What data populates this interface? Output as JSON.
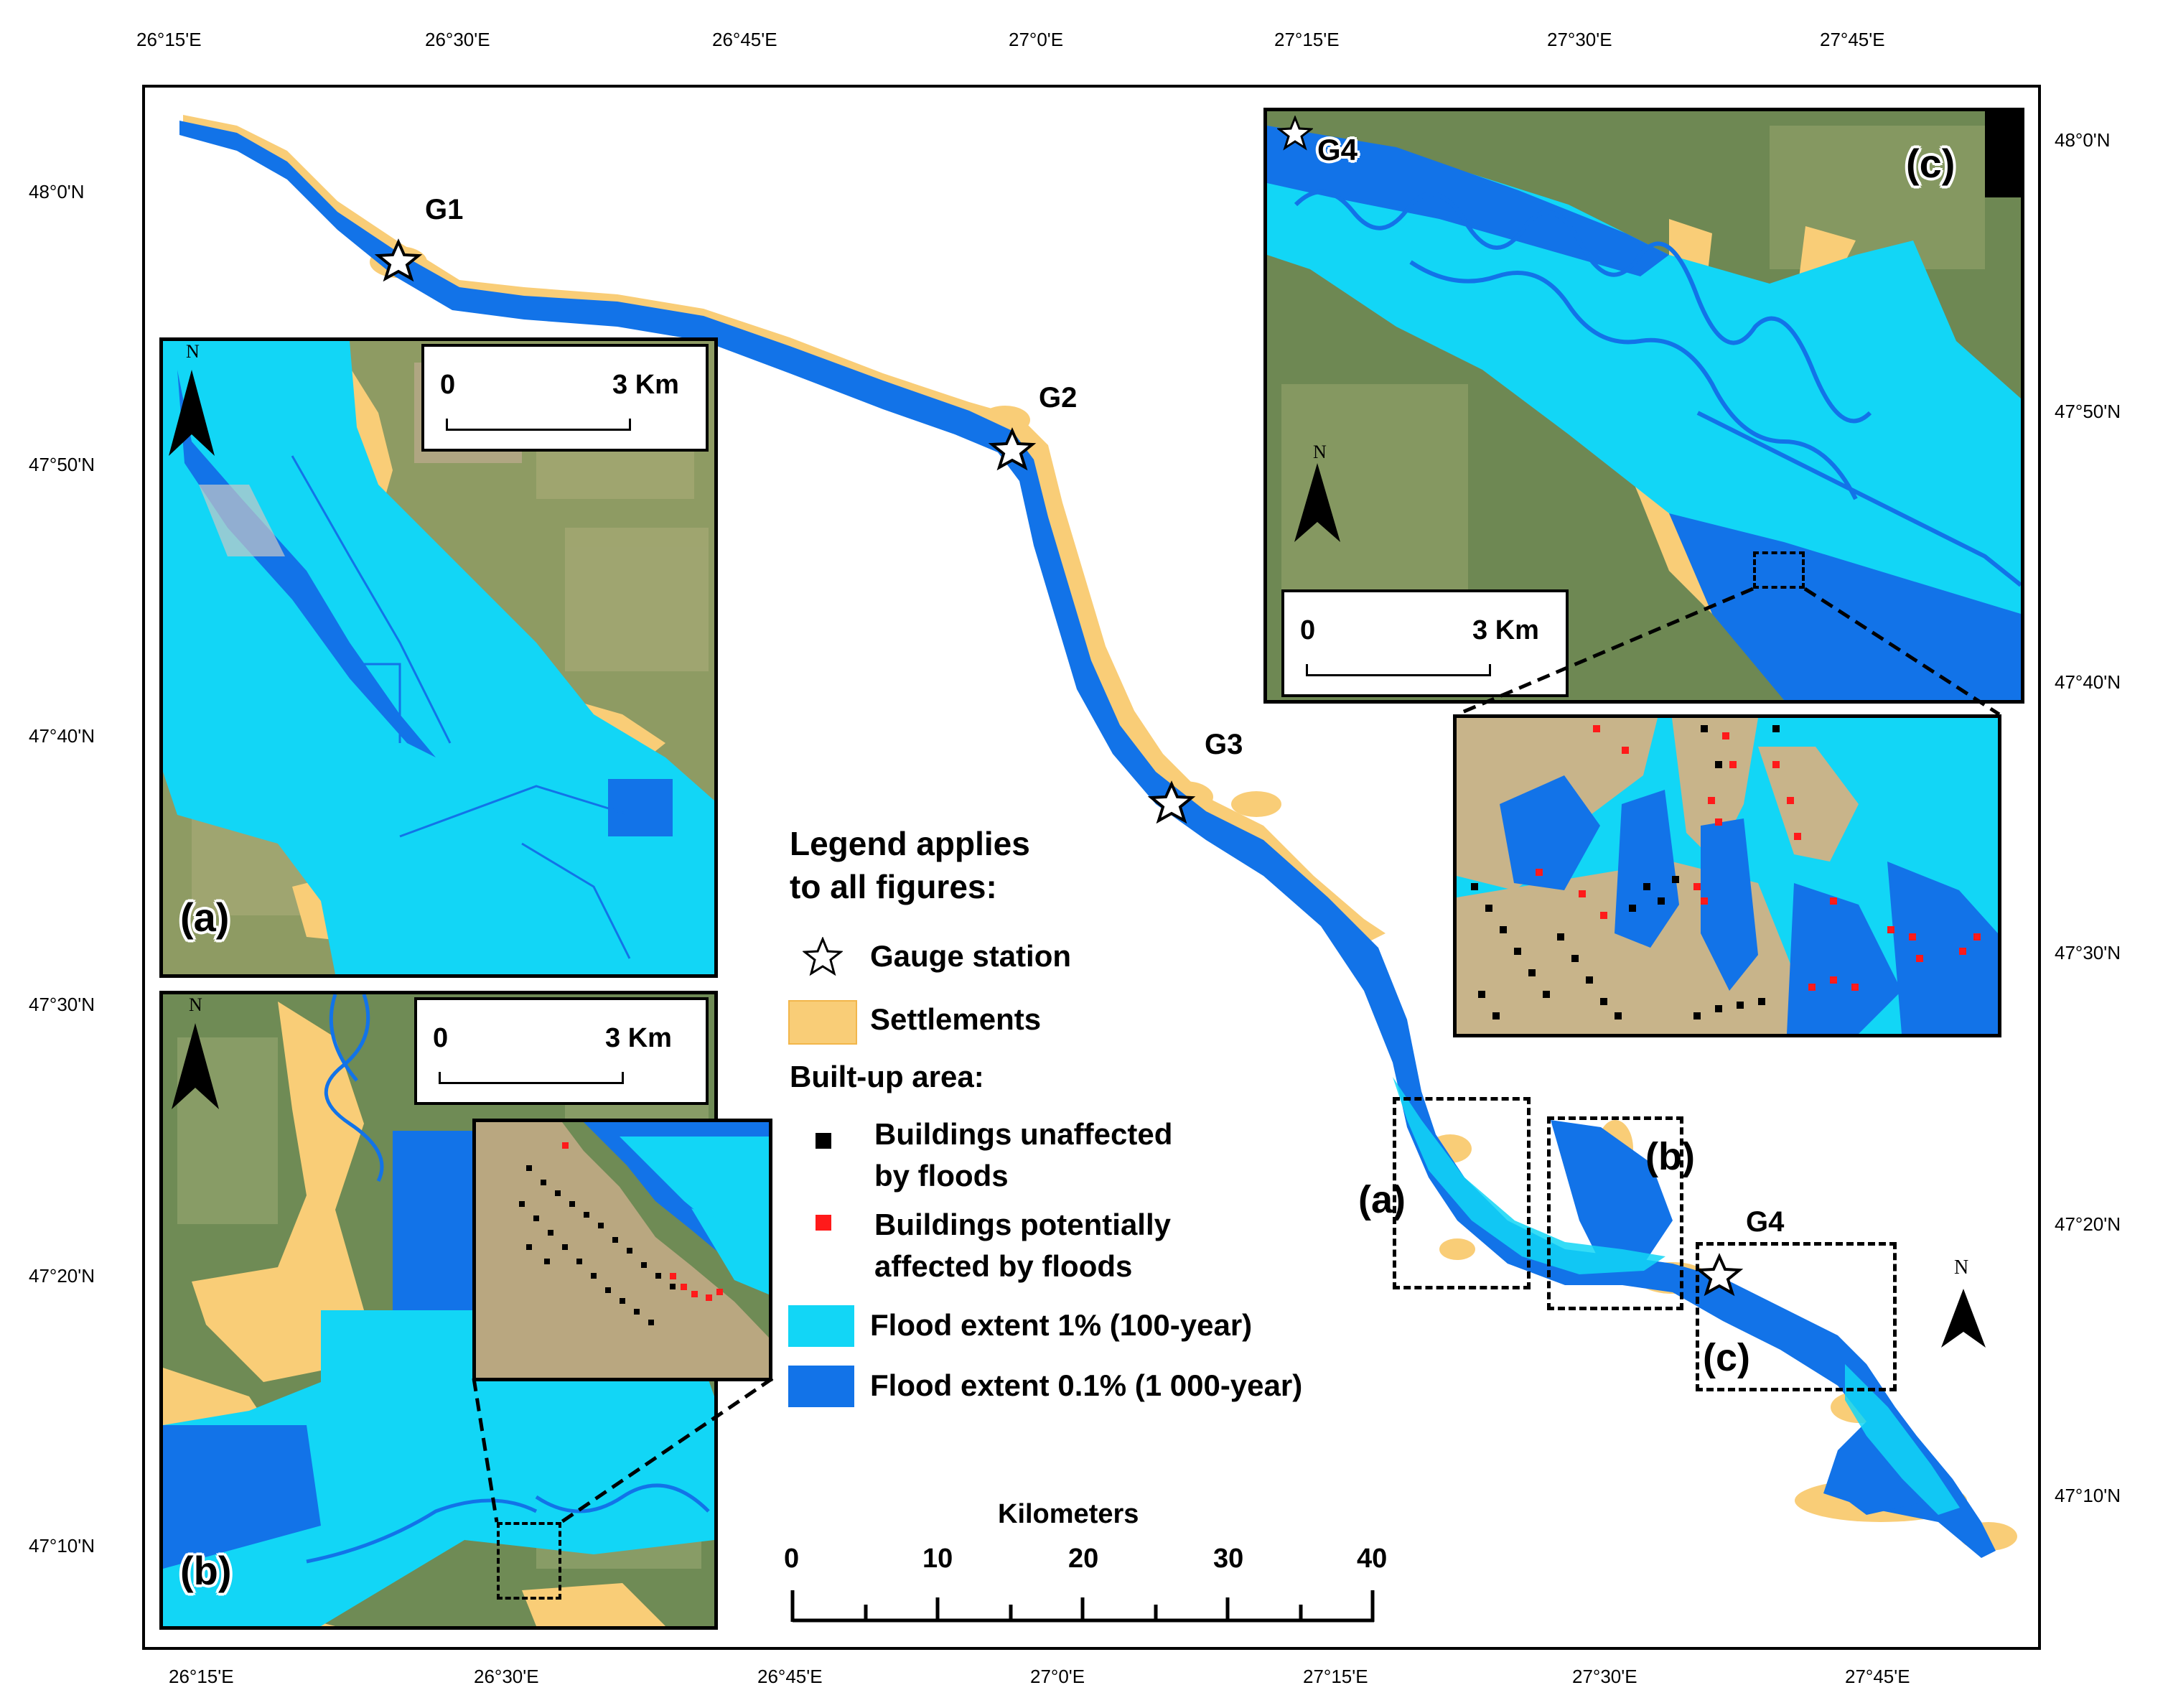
{
  "coords": {
    "top": [
      "26°15'E",
      "26°30'E",
      "26°45'E",
      "27°0'E",
      "27°15'E",
      "27°30'E",
      "27°45'E"
    ],
    "bottom": [
      "26°15'E",
      "26°30'E",
      "26°45'E",
      "27°0'E",
      "27°15'E",
      "27°30'E",
      "27°45'E"
    ],
    "left": [
      "48°0'N",
      "47°50'N",
      "47°40'N",
      "47°30'N",
      "47°20'N",
      "47°10'N"
    ],
    "right": [
      "48°0'N",
      "47°50'N",
      "47°40'N",
      "47°30'N",
      "47°20'N",
      "47°10'N"
    ]
  },
  "gauges": {
    "g1": "G1",
    "g2": "G2",
    "g3": "G3",
    "g4": "G4",
    "g4_inset": "G4"
  },
  "insets": {
    "a": {
      "tag": "(a)",
      "scale_start": "0",
      "scale_end": "3 Km",
      "north": "N"
    },
    "b": {
      "tag": "(b)",
      "scale_start": "0",
      "scale_end": "3 Km",
      "north": "N"
    },
    "c": {
      "tag": "(c)",
      "scale_start": "0",
      "scale_end": "3 Km",
      "north": "N"
    }
  },
  "extent_boxes": {
    "a": "(a)",
    "b": "(b)",
    "c": "(c)"
  },
  "main_north": "N",
  "legend": {
    "title_line1": "Legend applies",
    "title_line2": "to all figures:",
    "gauge": "Gauge station",
    "settlements": "Settlements",
    "builtup": "Built-up area:",
    "unaffected_line1": "Buildings unaffected",
    "unaffected_line2": "by floods",
    "affected_line1": "Buildings potentially",
    "affected_line2": "affected by floods",
    "flood1": "Flood extent 1% (100-year)",
    "flood01": "Flood extent 0.1% (1 000-year)"
  },
  "scalebar": {
    "title": "Kilometers",
    "ticks": [
      "0",
      "10",
      "20",
      "30",
      "40"
    ]
  },
  "colors": {
    "settlement": "#f9cd77",
    "flood1": "#12d6f6",
    "flood01": "#1273e8",
    "unaffected": "#000000",
    "affected": "#ff1a1a"
  }
}
